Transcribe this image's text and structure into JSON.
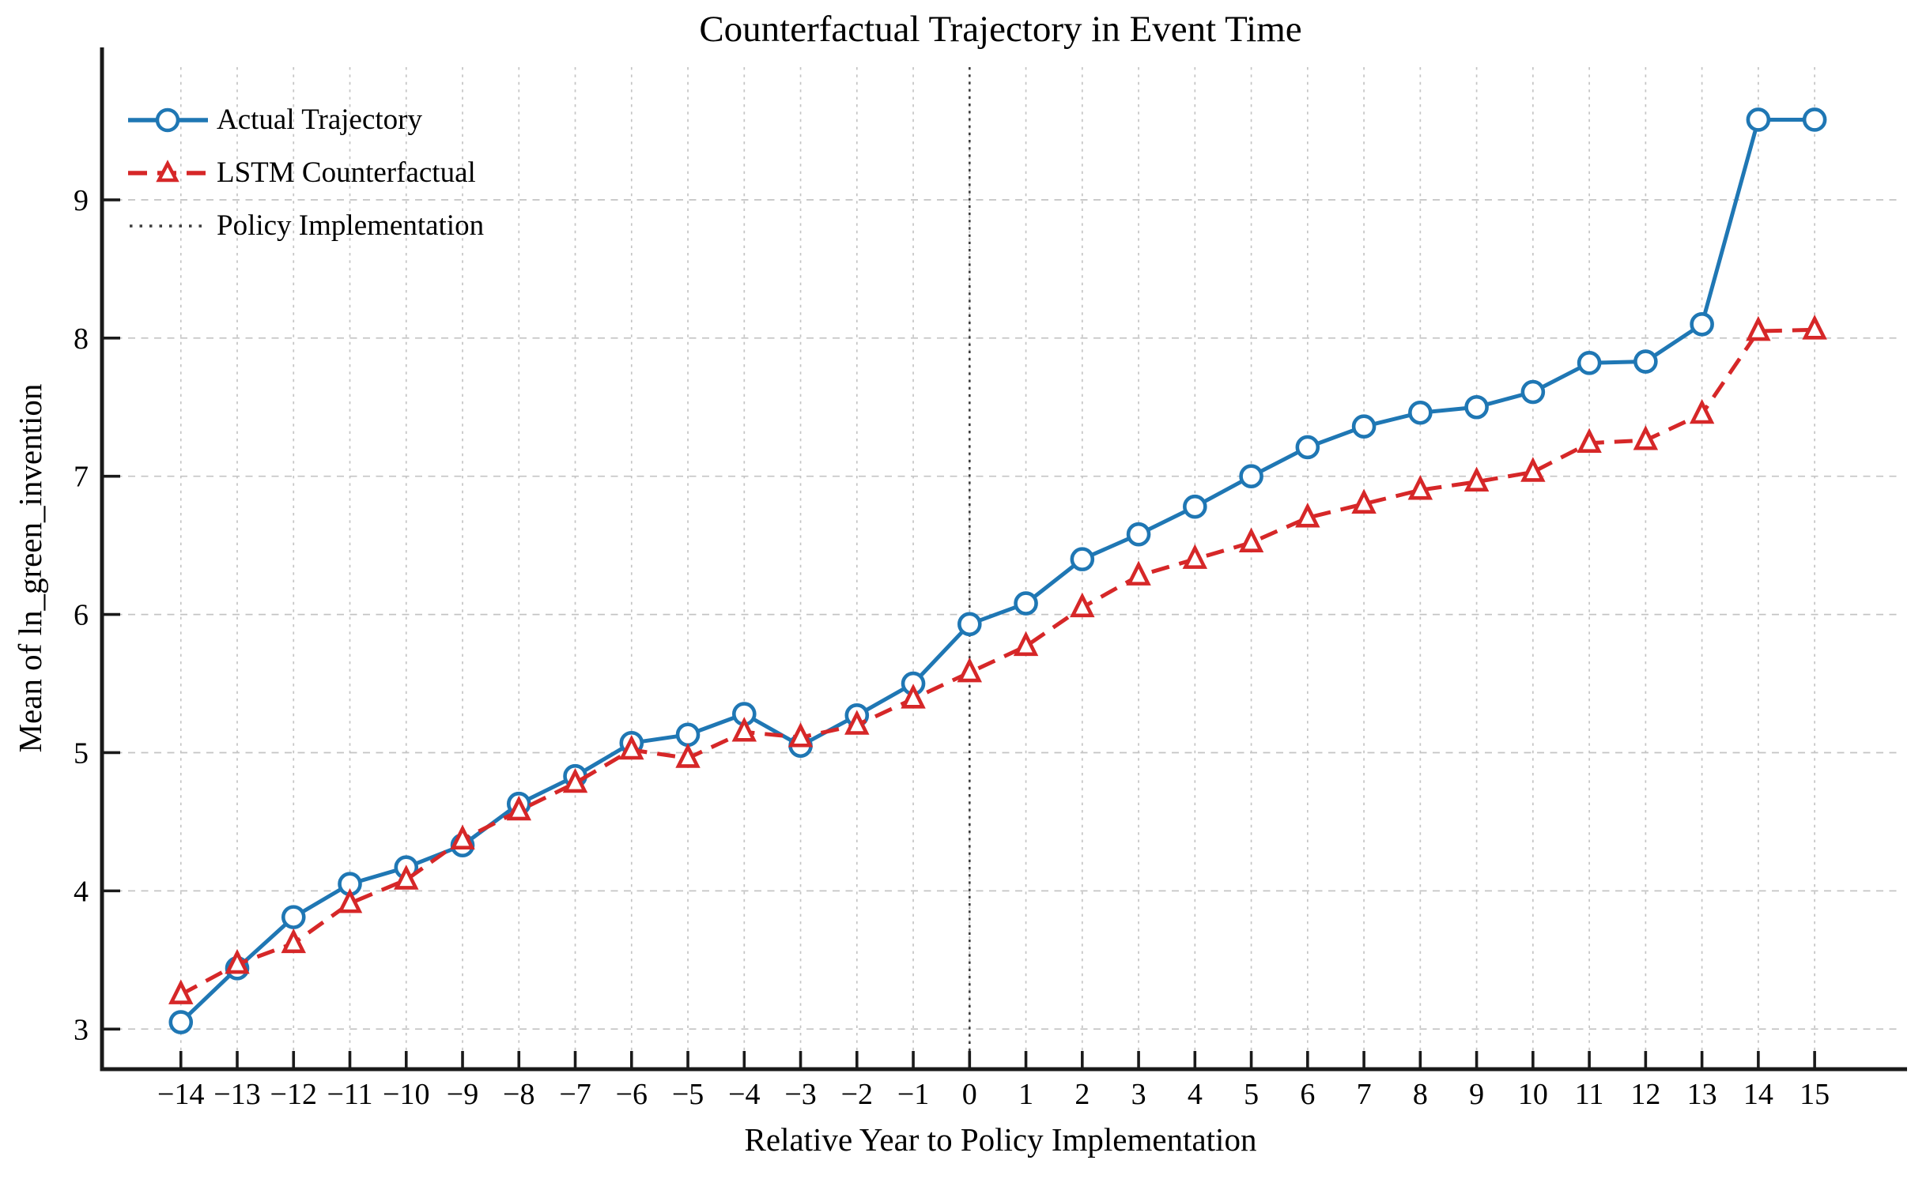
{
  "chart_data": {
    "type": "line",
    "title": "Counterfactual Trajectory in Event Time",
    "xlabel": "Relative Year to Policy Implementation",
    "ylabel": "Mean of ln_green_invention",
    "x": [
      -14,
      -13,
      -12,
      -11,
      -10,
      -9,
      -8,
      -7,
      -6,
      -5,
      -4,
      -3,
      -2,
      -1,
      0,
      1,
      2,
      3,
      4,
      5,
      6,
      7,
      8,
      9,
      10,
      11,
      12,
      13,
      14,
      15
    ],
    "series": [
      {
        "name": "Actual Trajectory",
        "color": "#1f77b4",
        "line": "solid",
        "marker": "circle",
        "values": [
          3.05,
          3.44,
          3.81,
          4.05,
          4.17,
          4.33,
          4.63,
          4.83,
          5.07,
          5.13,
          5.28,
          5.05,
          5.27,
          5.5,
          5.93,
          6.08,
          6.4,
          6.58,
          6.78,
          7.0,
          7.21,
          7.36,
          7.46,
          7.5,
          7.61,
          7.82,
          7.83,
          8.1,
          9.58,
          9.58
        ]
      },
      {
        "name": "LSTM Counterfactual",
        "color": "#d62728",
        "line": "dashed",
        "marker": "triangle-up",
        "values": [
          3.25,
          3.47,
          3.62,
          3.91,
          4.08,
          4.37,
          4.58,
          4.78,
          5.02,
          4.96,
          5.15,
          5.11,
          5.2,
          5.39,
          5.58,
          5.77,
          6.05,
          6.28,
          6.4,
          6.52,
          6.7,
          6.8,
          6.9,
          6.96,
          7.03,
          7.24,
          7.26,
          7.45,
          8.05,
          8.06
        ]
      }
    ],
    "policy_line": {
      "label": "Policy Implementation",
      "x": 0,
      "color": "#3d3d3d",
      "style": "dotted"
    },
    "xticks": [
      -14,
      -13,
      -12,
      -11,
      -10,
      -9,
      -8,
      -7,
      -6,
      -5,
      -4,
      -3,
      -2,
      -1,
      0,
      1,
      2,
      3,
      4,
      5,
      6,
      7,
      8,
      9,
      10,
      11,
      12,
      13,
      14,
      15
    ],
    "xtick_labels": [
      "−14",
      "−13",
      "−12",
      "−11",
      "−10",
      "−9",
      "−8",
      "−7",
      "−6",
      "−5",
      "−4",
      "−3",
      "−2",
      "−1",
      "0",
      "1",
      "2",
      "3",
      "4",
      "5",
      "6",
      "7",
      "8",
      "9",
      "10",
      "11",
      "12",
      "13",
      "14",
      "15"
    ],
    "yticks": [
      3,
      4,
      5,
      6,
      7,
      8,
      9
    ],
    "ytick_labels": [
      "3",
      "4",
      "5",
      "6",
      "7",
      "8",
      "9"
    ],
    "xlim": [
      -15.4,
      16.5
    ],
    "ylim": [
      2.71,
      9.96
    ],
    "grid": true,
    "grid_color": "#c4c4c4",
    "legend_position": "upper-left",
    "background": "#ffffff",
    "axis_color": "#1a1a1a"
  }
}
